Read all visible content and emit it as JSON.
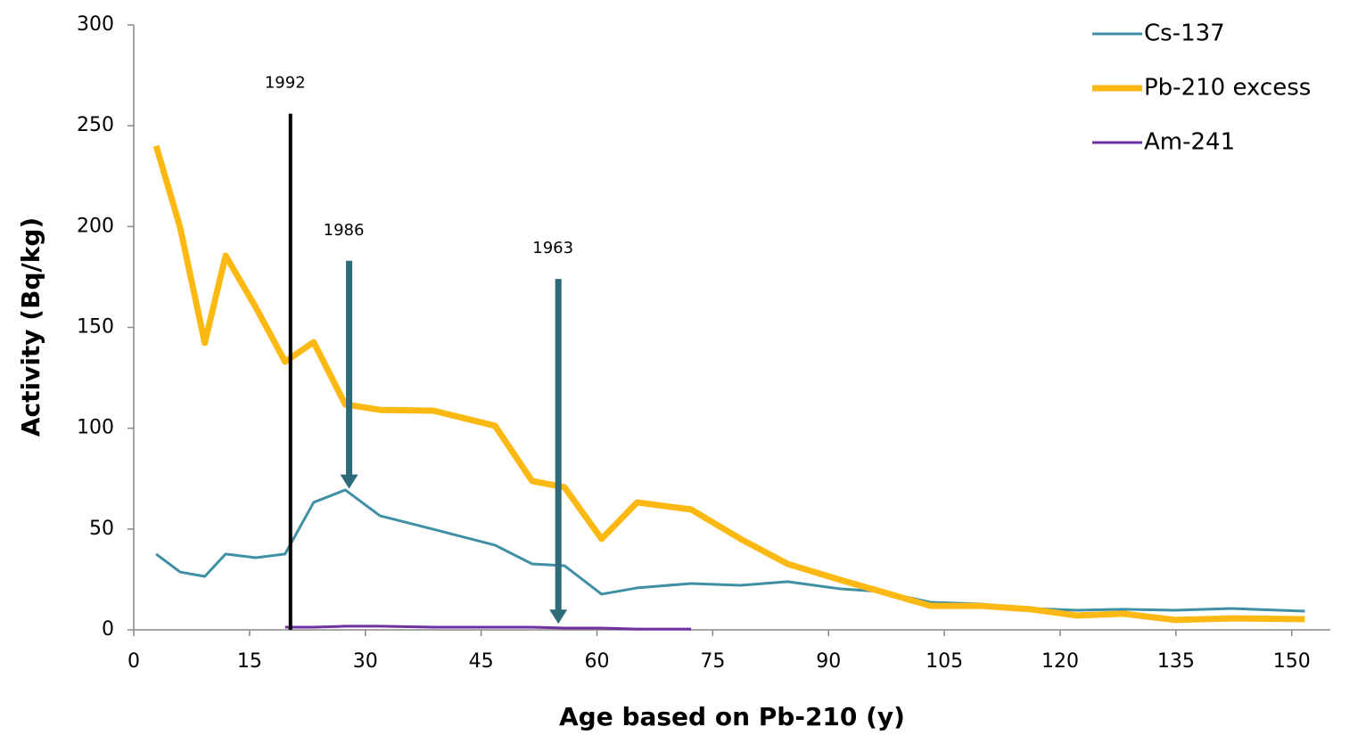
{
  "chart_data": {
    "type": "line",
    "x_label": "Age based on Pb-210 (y)",
    "y_label": "Activity (Bq/kg)",
    "xlim": [
      0,
      155
    ],
    "ylim": [
      0,
      300
    ],
    "xticks": [
      0,
      15,
      30,
      45,
      60,
      75,
      90,
      105,
      120,
      135,
      150
    ],
    "yticks": [
      0,
      50,
      100,
      150,
      200,
      250,
      300
    ],
    "grid": false,
    "legend": "upper right",
    "series": [
      {
        "name": "Cs-137",
        "color": "#3f8fa5",
        "width": 3,
        "x": [
          2.9,
          6.0,
          9.2,
          11.9,
          15.8,
          19.6,
          23.3,
          27.4,
          31.9,
          38.8,
          46.8,
          51.6,
          55.8,
          60.6,
          65.2,
          72.2,
          78.6,
          84.7,
          91.6,
          96.8,
          103.2,
          109.7,
          116.2,
          122.2,
          128.2,
          134.9,
          142.2,
          151.7
        ],
        "values": [
          37.6,
          28.7,
          26.5,
          37.6,
          35.8,
          37.6,
          63.2,
          69.4,
          56.6,
          49.9,
          42.0,
          32.7,
          31.8,
          17.7,
          20.8,
          23.0,
          22.1,
          23.9,
          20.3,
          19.0,
          13.7,
          12.8,
          10.6,
          9.7,
          10.2,
          9.7,
          10.6,
          9.3
        ]
      },
      {
        "name": "Pb-210 excess",
        "color": "#fdb913",
        "width": 7,
        "x": [
          2.9,
          6.0,
          9.2,
          11.9,
          15.8,
          19.6,
          23.3,
          27.4,
          31.9,
          38.8,
          46.8,
          51.6,
          55.8,
          60.6,
          65.2,
          72.2,
          78.6,
          84.7,
          91.6,
          96.8,
          103.2,
          109.7,
          116.2,
          122.2,
          128.2,
          134.9,
          142.2,
          151.7
        ],
        "values": [
          240,
          199.7,
          142.3,
          185.6,
          160,
          133,
          142.7,
          111.8,
          109.1,
          108.7,
          101.2,
          73.8,
          70.7,
          45.1,
          63.2,
          59.7,
          45.1,
          32.7,
          24.7,
          19,
          11.9,
          11.9,
          10.2,
          7.1,
          8,
          4.9,
          5.7,
          5.3
        ]
      },
      {
        "name": "Am-241",
        "color": "#7030a0",
        "width": 3,
        "x": [
          19.6,
          23.3,
          27.4,
          31.9,
          38.8,
          46.8,
          51.6,
          55.8,
          60.6,
          65.2,
          72.2
        ],
        "values": [
          1.3,
          1.3,
          1.8,
          1.8,
          1.3,
          1.3,
          1.3,
          0.9,
          0.9,
          0.4,
          0.4
        ]
      }
    ],
    "annotations": [
      {
        "text": "1992",
        "x": 20.3,
        "y_start": 256,
        "y_end": 0,
        "color": "#000000",
        "arrow": false
      },
      {
        "text": "1986",
        "x": 27.9,
        "y_start": 183,
        "y_end": 70,
        "color": "#2e6b78",
        "arrow": true
      },
      {
        "text": "1963",
        "x": 55.0,
        "y_start": 174,
        "y_end": 3,
        "color": "#2e6b78",
        "arrow": true
      }
    ]
  }
}
